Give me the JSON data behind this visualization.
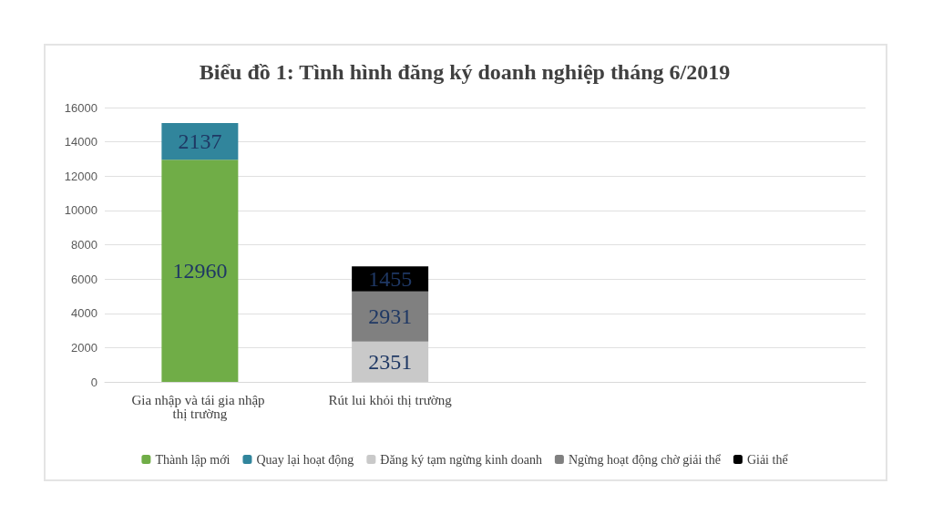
{
  "chart_data": {
    "type": "bar",
    "title": "Biểu đồ 1: Tình hình đăng ký doanh nghiệp tháng 6/2019",
    "stacked": true,
    "categories": [
      "Gia nhập và tái gia nhập thị trường",
      "Rút lui khỏi thị trường",
      null,
      null
    ],
    "series": [
      {
        "name": "Thành lập mới",
        "color": "#70ad47",
        "values": [
          12960,
          null,
          null,
          null
        ]
      },
      {
        "name": "Quay lại hoạt động",
        "color": "#31859c",
        "values": [
          2137,
          null,
          null,
          null
        ]
      },
      {
        "name": "Đăng ký tạm ngừng kinh doanh",
        "color": "#c9c9c9",
        "values": [
          null,
          2351,
          null,
          null
        ]
      },
      {
        "name": "Ngừng hoạt động chờ giải thể",
        "color": "#808080",
        "values": [
          null,
          2931,
          null,
          null
        ]
      },
      {
        "name": "Giải thể",
        "color": "#000000",
        "values": [
          null,
          1455,
          null,
          null
        ]
      }
    ],
    "ylim": [
      0,
      16000
    ],
    "yticks": [
      0,
      2000,
      4000,
      6000,
      8000,
      10000,
      12000,
      14000,
      16000
    ],
    "grid": "y",
    "legend": "bottom",
    "data_labels": true
  }
}
